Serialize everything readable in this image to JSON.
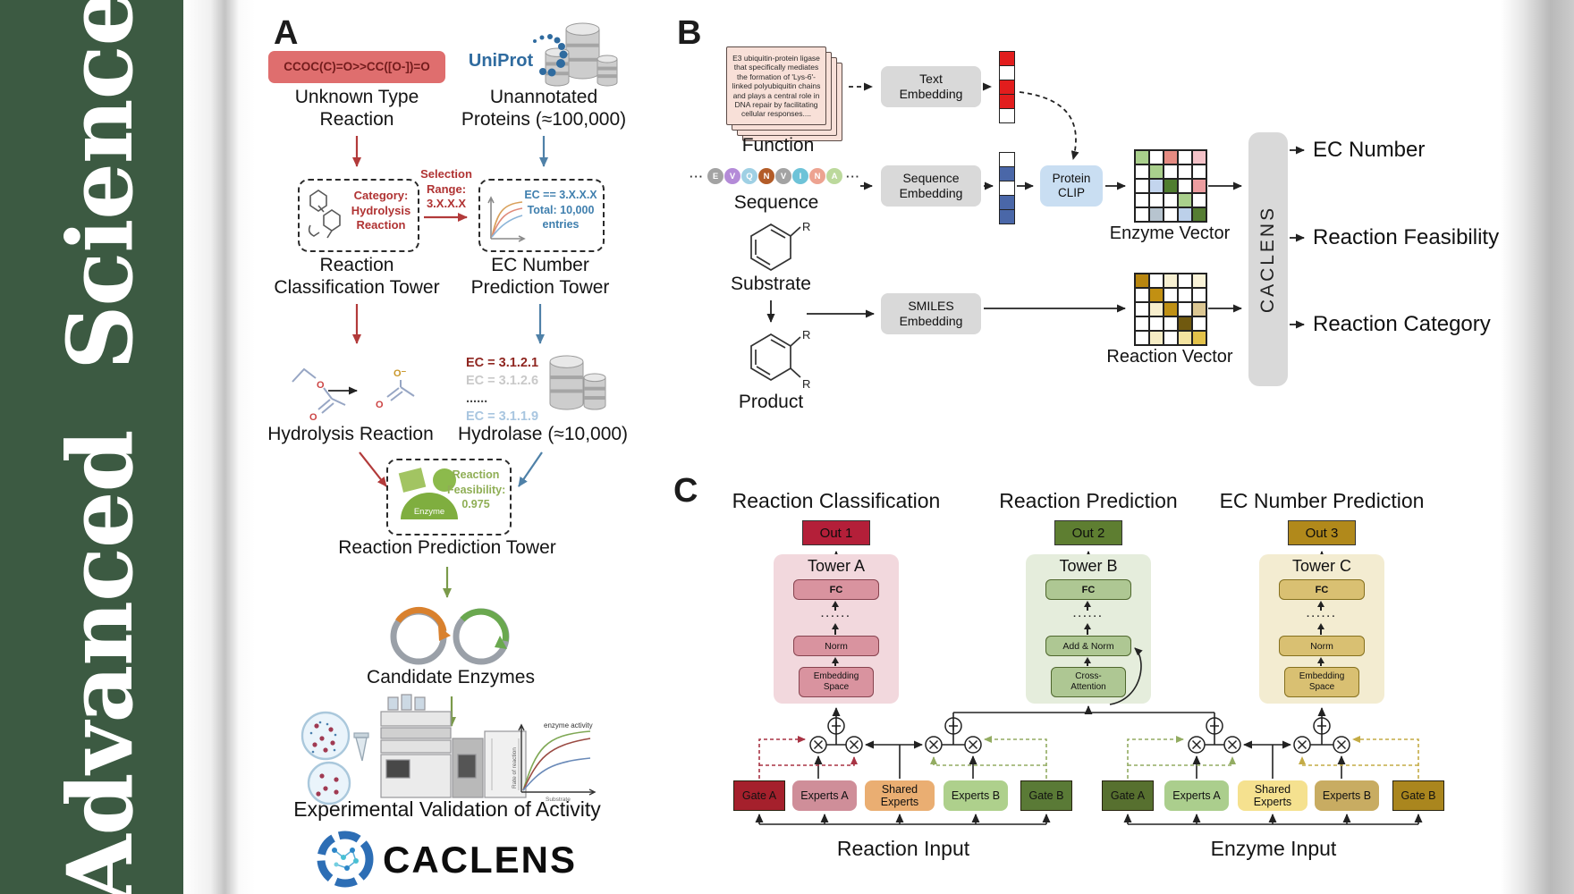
{
  "journal": {
    "name": "Advanced Science"
  },
  "panelA": {
    "label": "A",
    "smiles": "CCOC(C)=O>>CC([O-])=O",
    "unknownReaction": "Unknown Type\nReaction",
    "uniprotLogo": "UniProt",
    "unannotatedProteins": "Unannotated\nProteins (≈100,000)",
    "categoryNote": "Category:\nHydrolysis\nReaction",
    "selectionNote": "Selection\nRange:\n3.X.X.X",
    "ecFilterNote": "EC == 3.X.X.X\nTotal: 10,000\nentries",
    "towerLabel1": "Reaction\nClassification Tower",
    "towerLabel2": "EC Number\nPrediction Tower",
    "hydrolysisReaction": "Hydrolysis Reaction",
    "ecList": [
      {
        "text": "EC = 3.1.2.1",
        "color": "#8f2620"
      },
      {
        "text": "EC = 3.1.2.6",
        "color": "#c9c9c9"
      },
      {
        "text": "......",
        "color": "#4a4a4a"
      },
      {
        "text": "EC = 3.1.1.9",
        "color": "#a9c6e0"
      }
    ],
    "hydrolase": "Hydrolase (≈10,000)",
    "enzymeBadge": "Enzyme",
    "feasibilityNote": "Reaction\nFeasibility:\n0.975",
    "towerLabel3": "Reaction Prediction Tower",
    "candidateEnzymes": "Candidate Enzymes",
    "activityPlot": {
      "annotation": "enzyme activity",
      "ylabel": "Rate of reaction",
      "xlabel": "Substrate"
    },
    "validation": "Experimental Validation of Activity",
    "logoText": "CACLENS",
    "atomLabels": {
      "esterO1": "O",
      "esterO2": "O",
      "acetateO1": "O⁻",
      "acetateO2": "O"
    }
  },
  "panelB": {
    "label": "B",
    "functionCardText": "E3 ubiquitin-protein ligase that specifically mediates the formation of 'Lys-6'-linked polyubiquitin chains and plays a central role in DNA repair by facilitating cellular responses....",
    "functionLabel": "Function",
    "ellipsis": "···",
    "residues": [
      {
        "letter": "E",
        "color": "#a3a3a3"
      },
      {
        "letter": "V",
        "color": "#b48bd8"
      },
      {
        "letter": "Q",
        "color": "#9fd0e4"
      },
      {
        "letter": "N",
        "color": "#b35c28"
      },
      {
        "letter": "V",
        "color": "#a3a3a3"
      },
      {
        "letter": "I",
        "color": "#6ec3d8"
      },
      {
        "letter": "N",
        "color": "#eda391"
      },
      {
        "letter": "A",
        "color": "#bcd99c"
      }
    ],
    "sequenceLabel": "Sequence",
    "substrateLabel": "Substrate",
    "productLabel": "Product",
    "rGroup": "R",
    "textEmbedding": "Text\nEmbedding",
    "sequenceEmbedding": "Sequence\nEmbedding",
    "smilesEmbedding": "SMILES\nEmbedding",
    "proteinClip": "Protein\nCLIP",
    "textVector": [
      "#e21d1d",
      "#ffffff",
      "#e21d1d",
      "#e21d1d",
      "#ffffff"
    ],
    "sequenceVector": [
      "#ffffff",
      "#4a67a8",
      "#ffffff",
      "#4a67a8",
      "#4a67a8"
    ],
    "enzymeVector": {
      "label": "Enzyme Vector",
      "cells": [
        [
          "#a9cf8c",
          "#ffffff",
          "#e58b82",
          "#ffffff",
          "#f4c2c8"
        ],
        [
          "#ffffff",
          "#a9cf8c",
          "#ffffff",
          "#ffffff",
          "#ffffff"
        ],
        [
          "#ffffff",
          "#c3d5ee",
          "#4f7d2f",
          "#ffffff",
          "#ec9da0"
        ],
        [
          "#ffffff",
          "#ffffff",
          "#ffffff",
          "#a9cf8c",
          "#ffffff"
        ],
        [
          "#ffffff",
          "#b7c4cf",
          "#ffffff",
          "#bcd0ea",
          "#557d33"
        ]
      ]
    },
    "reactionVector": {
      "label": "Reaction Vector",
      "cells": [
        [
          "#b8860f",
          "#ffffff",
          "#f7f0d2",
          "#ffffff",
          "#faf3d8"
        ],
        [
          "#ffffff",
          "#c29012",
          "#ffffff",
          "#ffffff",
          "#ffffff"
        ],
        [
          "#ffffff",
          "#f7eecd",
          "#bf9015",
          "#ffffff",
          "#dcc793"
        ],
        [
          "#ffffff",
          "#ffffff",
          "#ffffff",
          "#70590f",
          "#ffffff"
        ],
        [
          "#ffffff",
          "#f5ecc5",
          "#ffffff",
          "#f3e3a0",
          "#e3c24a"
        ]
      ]
    },
    "caclensBar": "CACLENS",
    "outputs": [
      "EC Number",
      "Reaction Feasibility",
      "Reaction Category"
    ]
  },
  "panelC": {
    "label": "C",
    "columns": [
      {
        "title": "Reaction Classification",
        "out": "Out 1",
        "tower": "Tower A",
        "blocks": {
          "fc": "FC",
          "dots": "······",
          "mid": "Norm",
          "bottom": "Embedding\nSpace"
        },
        "colors": {
          "out": "#b41f39",
          "towerBg": "#f2d8dd",
          "block": "#d9939f",
          "border": "#87434f"
        },
        "residual": false
      },
      {
        "title": "Reaction Prediction",
        "out": "Out 2",
        "tower": "Tower B",
        "blocks": {
          "fc": "FC",
          "dots": "······",
          "mid": "Add & Norm",
          "bottom": "Cross-\nAttention"
        },
        "colors": {
          "out": "#5e7e31",
          "towerBg": "#e5eddc",
          "block": "#aec793",
          "border": "#4f672d"
        },
        "residual": true
      },
      {
        "title": "EC Number Prediction",
        "out": "Out 3",
        "tower": "Tower C",
        "blocks": {
          "fc": "FC",
          "dots": "······",
          "mid": "Norm",
          "bottom": "Embedding\nSpace"
        },
        "colors": {
          "out": "#b1891b",
          "towerBg": "#f3ecd1",
          "block": "#d9c072",
          "border": "#85701e"
        },
        "residual": false
      }
    ],
    "moeGroups": [
      {
        "inputLabel": "Reaction Input",
        "boxes": [
          {
            "label": "Gate A",
            "bg": "#a5202c",
            "kind": "gate"
          },
          {
            "label": "Experts A",
            "bg": "#cf8e99",
            "kind": "experts"
          },
          {
            "label": "Shared\nExperts",
            "bg": "#eaae72",
            "kind": "experts"
          },
          {
            "label": "Experts B",
            "bg": "#aed08c",
            "kind": "experts"
          },
          {
            "label": "Gate B",
            "bg": "#5a7a36",
            "kind": "gate"
          }
        ]
      },
      {
        "inputLabel": "Enzyme Input",
        "boxes": [
          {
            "label": "Gate A",
            "bg": "#57702f",
            "kind": "gate"
          },
          {
            "label": "Experts A",
            "bg": "#abce8d",
            "kind": "experts"
          },
          {
            "label": "Shared\nExperts",
            "bg": "#f5e18f",
            "kind": "experts"
          },
          {
            "label": "Experts B",
            "bg": "#c8ac62",
            "kind": "experts"
          },
          {
            "label": "Gate B",
            "bg": "#aa861e",
            "kind": "gate"
          }
        ]
      }
    ]
  },
  "colors": {
    "sidebarGreen": "#3c5a42",
    "smilesBoxBg": "#df6e6e",
    "smilesText": "#731c1c",
    "arrowRed": "#b23a3a",
    "arrowBlue": "#4f81a8",
    "arrowGreen": "#7a9a4a",
    "uniprotBlue": "#2f6b9f",
    "noteRed": "#b03333",
    "noteBlue": "#3f7fae",
    "noteGreen": "#8fae55",
    "embeddingBoxBg": "#d9d9d9",
    "proteinClipBg": "#c9def2",
    "caclensBarBg": "#d9d9d9",
    "gateDashRed": "#a83444",
    "gateDashGreen": "#93ac62",
    "gateDashGold": "#c4ab45"
  }
}
